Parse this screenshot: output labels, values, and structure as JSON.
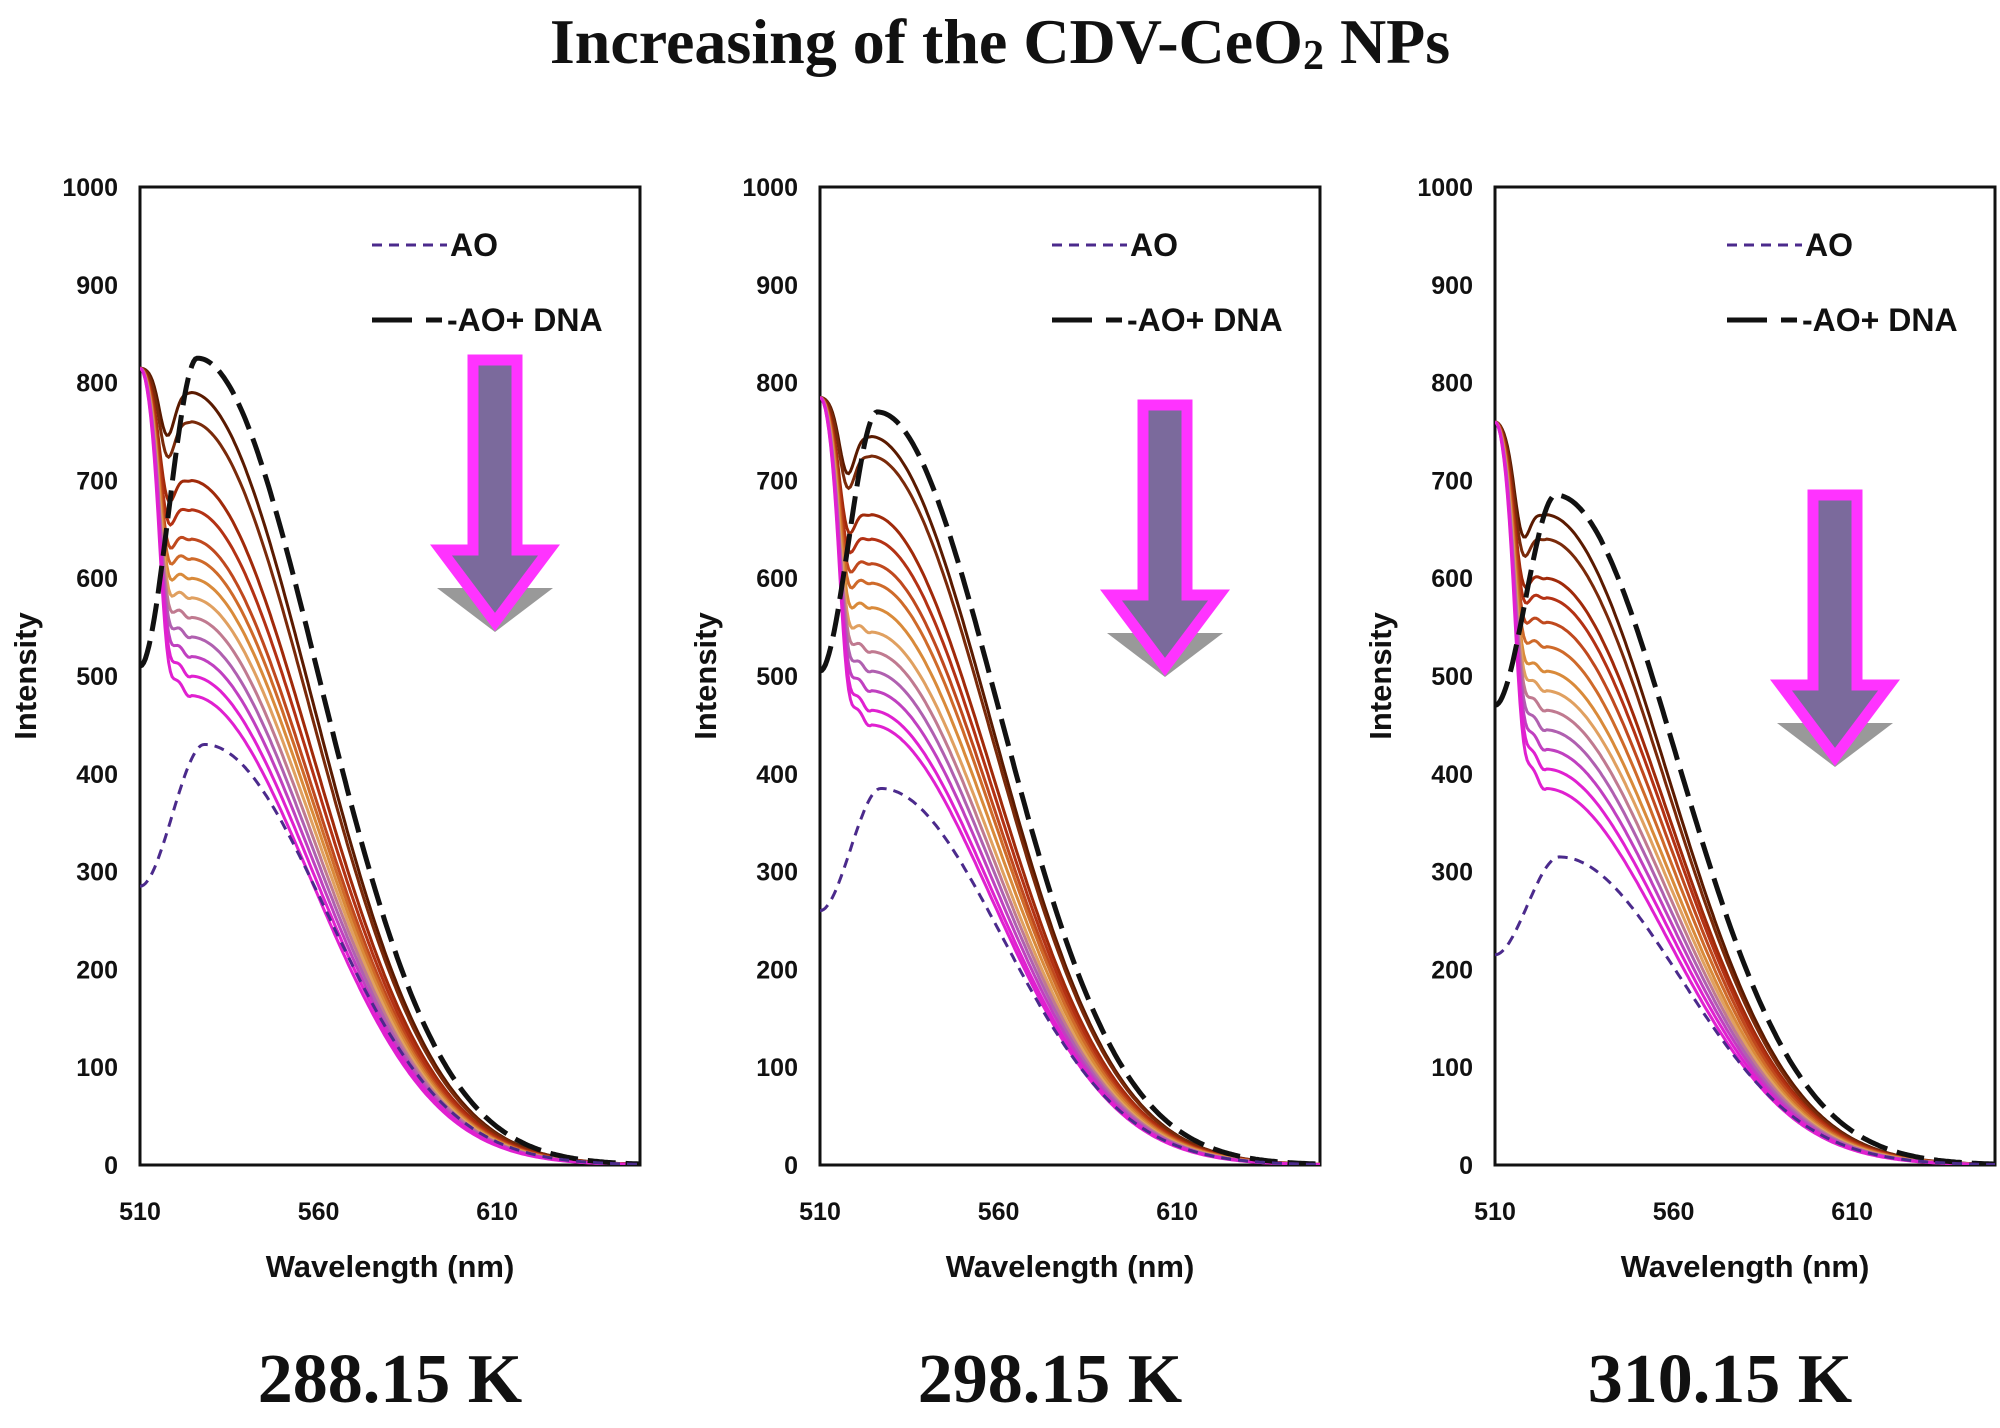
{
  "title": {
    "main": "Increasing of the CDV-CeO",
    "sub": "2",
    "tail": " NPs"
  },
  "temperatures": [
    "288.15 K",
    "298.15 K",
    "310.15 K"
  ],
  "colors": {
    "ao": "#4b2a8c",
    "ao_dna": "#111111",
    "titration": [
      "#5a1a00",
      "#7a2a0a",
      "#a02a0a",
      "#b43214",
      "#c0491e",
      "#cf6a2a",
      "#d98a3a",
      "#e0a060",
      "#c07a90",
      "#b060b0",
      "#c040c0",
      "#e020d0"
    ],
    "arrow_fill": "#7b6a9c",
    "arrow_border": "#ff33ff",
    "arrow_shadow": "#999999"
  },
  "chart_data": [
    {
      "type": "line",
      "title": "288.15 K",
      "xlabel": "Wavelength (nm)",
      "ylabel": "Intensity",
      "xlim": [
        510,
        650
      ],
      "ylim": [
        0,
        1000
      ],
      "xticks": [
        510,
        560,
        610
      ],
      "yticks": [
        0,
        100,
        200,
        300,
        400,
        500,
        600,
        700,
        800,
        900,
        1000
      ],
      "legend": [
        "AO",
        "AO+ DNA"
      ],
      "legend_position": "top-right",
      "ao": {
        "start": 285,
        "peak": 430,
        "peak_x": 528
      },
      "ao_dna": {
        "start": 510,
        "peak": 825,
        "peak_x": 526
      },
      "titration_start": 815,
      "titration_peaks": [
        790,
        760,
        700,
        670,
        640,
        620,
        600,
        580,
        560,
        540,
        520,
        500,
        480
      ]
    },
    {
      "type": "line",
      "title": "298.15 K",
      "xlabel": "Wavelength (nm)",
      "ylabel": "Intensity",
      "xlim": [
        510,
        650
      ],
      "ylim": [
        0,
        1000
      ],
      "xticks": [
        510,
        560,
        610
      ],
      "yticks": [
        0,
        100,
        200,
        300,
        400,
        500,
        600,
        700,
        800,
        900,
        1000
      ],
      "legend": [
        "AO",
        "AO+ DNA"
      ],
      "legend_position": "top-right",
      "ao": {
        "start": 260,
        "peak": 385,
        "peak_x": 527
      },
      "ao_dna": {
        "start": 505,
        "peak": 770,
        "peak_x": 526
      },
      "titration_start": 785,
      "titration_peaks": [
        745,
        725,
        665,
        640,
        615,
        595,
        570,
        545,
        525,
        505,
        485,
        465,
        450
      ]
    },
    {
      "type": "line",
      "title": "310.15 K",
      "xlabel": "Wavelength (nm)",
      "ylabel": "Intensity",
      "xlim": [
        510,
        650
      ],
      "ylim": [
        0,
        1000
      ],
      "xticks": [
        510,
        560,
        610
      ],
      "yticks": [
        0,
        100,
        200,
        300,
        400,
        500,
        600,
        700,
        800,
        900,
        1000
      ],
      "legend": [
        "AO",
        "AO+ DNA"
      ],
      "legend_position": "top-right",
      "ao": {
        "start": 215,
        "peak": 315,
        "peak_x": 528
      },
      "ao_dna": {
        "start": 470,
        "peak": 685,
        "peak_x": 527
      },
      "titration_start": 760,
      "titration_peaks": [
        665,
        640,
        600,
        580,
        555,
        530,
        505,
        485,
        465,
        445,
        425,
        405,
        385
      ]
    }
  ]
}
